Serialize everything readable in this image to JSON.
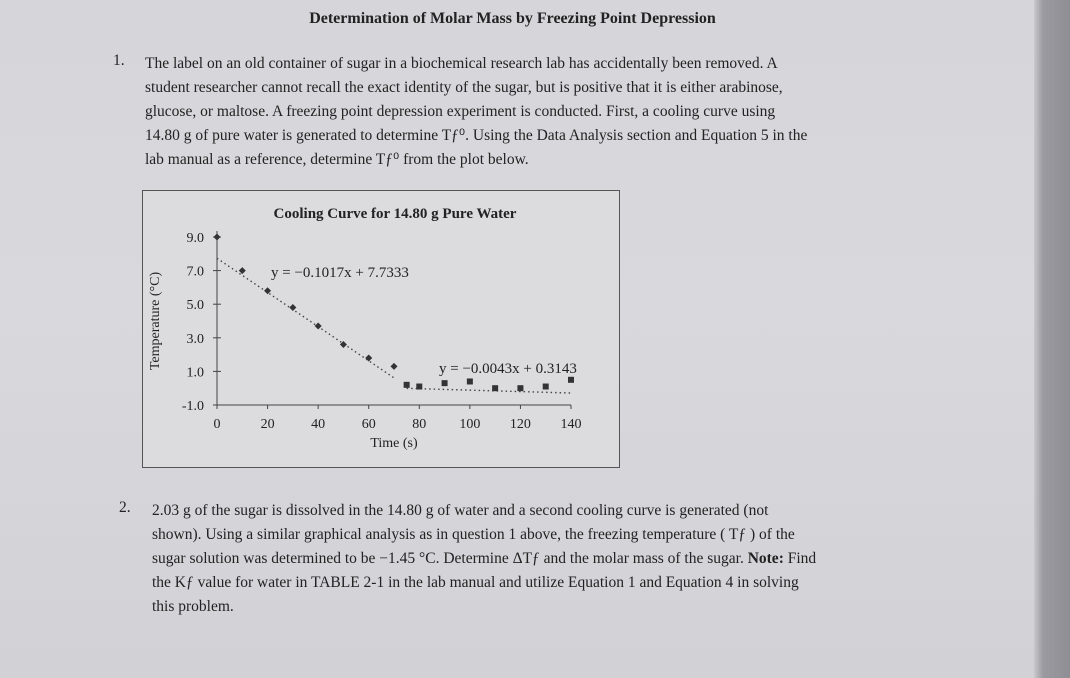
{
  "title": "Determination of Molar Mass by Freezing Point Depression",
  "q1": {
    "number": "1.",
    "text_line1": "The label on an old container of sugar in a biochemical research lab has accidentally been removed. A",
    "text_line2": "student researcher cannot recall the exact identity of the sugar, but is positive that it is either arabinose,",
    "text_line3": "glucose, or maltose. A freezing point depression experiment is conducted. First, a cooling curve using",
    "text_line4": "14.80 g of pure water is generated to determine Tƒ⁰. Using the Data Analysis section and Equation 5 in the",
    "text_line5": "lab manual as a reference, determine Tƒ⁰ from the plot below."
  },
  "q2": {
    "number": "2.",
    "text_line1": "2.03 g of the sugar is dissolved in the 14.80 g of water and a second cooling curve is generated (not",
    "text_line2": "shown). Using a similar graphical analysis as in question 1 above, the freezing temperature ( Tƒ ) of the",
    "text_line3": "sugar solution was determined to be −1.45 °C. Determine ΔTƒ and the molar mass of the sugar.",
    "note_label": "Note:",
    "note_rest": "Find",
    "text_line4": "the Kƒ value for water in TABLE 2-1 in the lab manual and utilize Equation 1 and Equation 4 in solving",
    "text_line5": "this problem."
  },
  "chart_data": {
    "type": "scatter",
    "title": "Cooling Curve for 14.80 g Pure Water",
    "xlabel": "Time (s)",
    "ylabel": "Temperature (°C)",
    "xlim": [
      0,
      140
    ],
    "ylim": [
      -1.0,
      9.0
    ],
    "x_ticks": [
      "0",
      "20",
      "40",
      "60",
      "80",
      "100",
      "120",
      "140"
    ],
    "y_ticks": [
      "9.0",
      "7.0",
      "5.0",
      "3.0",
      "1.0",
      "-1.0"
    ],
    "grid": false,
    "series": [
      {
        "marker": "diamond",
        "x": [
          0,
          10,
          20,
          30,
          40,
          50,
          60,
          70
        ],
        "y": [
          9.0,
          7.0,
          5.8,
          4.8,
          3.7,
          2.6,
          1.8,
          1.3
        ]
      },
      {
        "marker": "square",
        "x": [
          75,
          80,
          90,
          100,
          110,
          120,
          130,
          140
        ],
        "y": [
          0.2,
          0.1,
          0.3,
          0.4,
          0.0,
          0.0,
          0.1,
          0.5
        ]
      }
    ],
    "trendlines": [
      {
        "equation": "y = −0.1017x + 7.7333",
        "slope": -0.1017,
        "intercept": 7.7333,
        "x_range": [
          0,
          70
        ]
      },
      {
        "equation": "y = −0.0043x + 0.3143",
        "slope": -0.0043,
        "intercept": 0.3143,
        "x_range": [
          75,
          140
        ]
      }
    ],
    "colors": {
      "points": "#333333",
      "trend": "#444444"
    }
  }
}
